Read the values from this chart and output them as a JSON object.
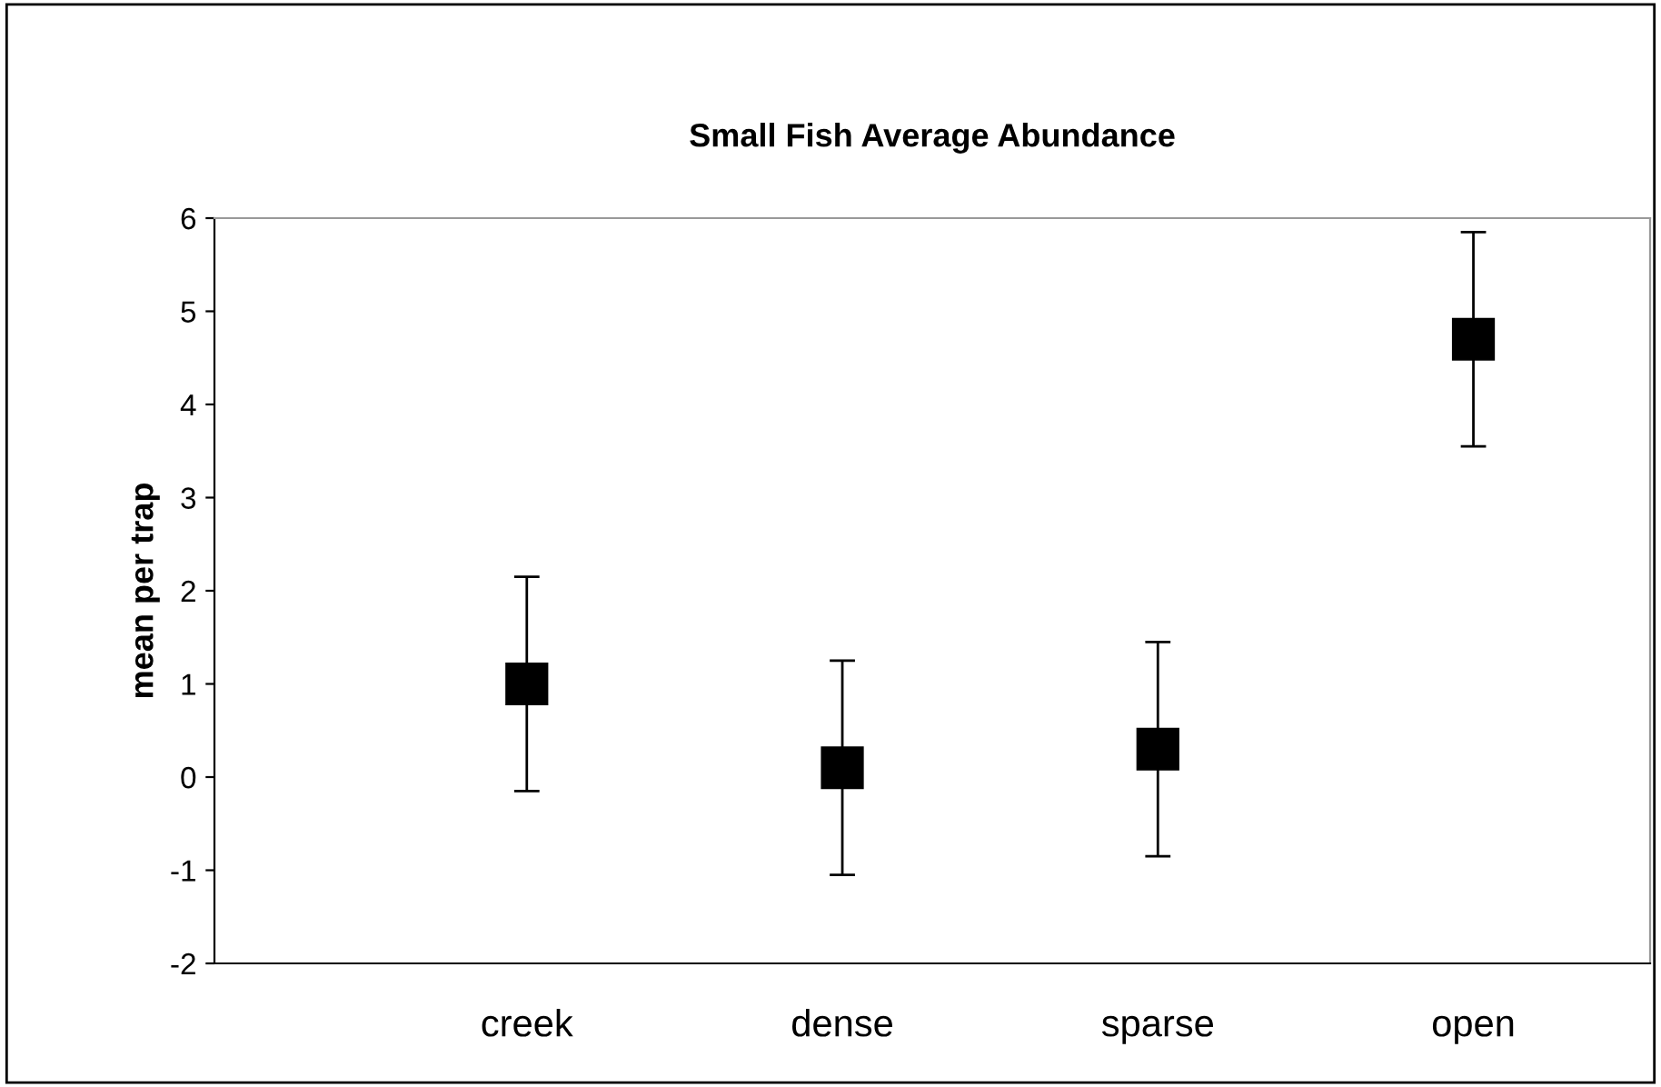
{
  "chart_data": {
    "type": "scatter",
    "title": "Small Fish Average Abundance",
    "ylabel": "mean per trap",
    "categories": [
      "creek",
      "dense",
      "sparse",
      "open"
    ],
    "series": [
      {
        "color": "#000000",
        "values": [
          1.0,
          0.1,
          0.3,
          4.7
        ],
        "errors": [
          1.15,
          1.15,
          1.15,
          1.15
        ]
      }
    ],
    "marker": "square",
    "ylim": [
      -2,
      6
    ],
    "yticks": [
      -2,
      -1,
      0,
      1,
      2,
      3,
      4,
      5,
      6
    ],
    "grid": false,
    "legend": false
  }
}
